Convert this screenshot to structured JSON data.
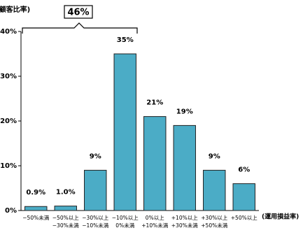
{
  "chart_data": {
    "type": "bar",
    "y_label": "(顧客比率)",
    "x_label": "(運用損益率)",
    "annotation": "46%",
    "categories": [
      "−50%未満",
      "−50%以上\n−30%未満",
      "−30%以上\n−10%未満",
      "−10%以上\n0%未満",
      "0%以上\n+10%未満",
      "+10%以上\n+30%未満",
      "+30%以上\n+50%未満",
      "+50%以上"
    ],
    "values": [
      0.9,
      1.0,
      9,
      35,
      21,
      19,
      9,
      6
    ],
    "value_labels": [
      "0.9%",
      "1.0%",
      "9%",
      "35%",
      "21%",
      "19%",
      "9%",
      "6%"
    ],
    "color": "#4bacc6",
    "ylim": [
      0,
      40
    ],
    "yticks": [
      {
        "value": 0,
        "label": "0%"
      },
      {
        "value": 10,
        "label": "10%"
      },
      {
        "value": 20,
        "label": "20%"
      },
      {
        "value": 30,
        "label": "30%"
      },
      {
        "value": 40,
        "label": "40%"
      }
    ],
    "grid": false
  }
}
